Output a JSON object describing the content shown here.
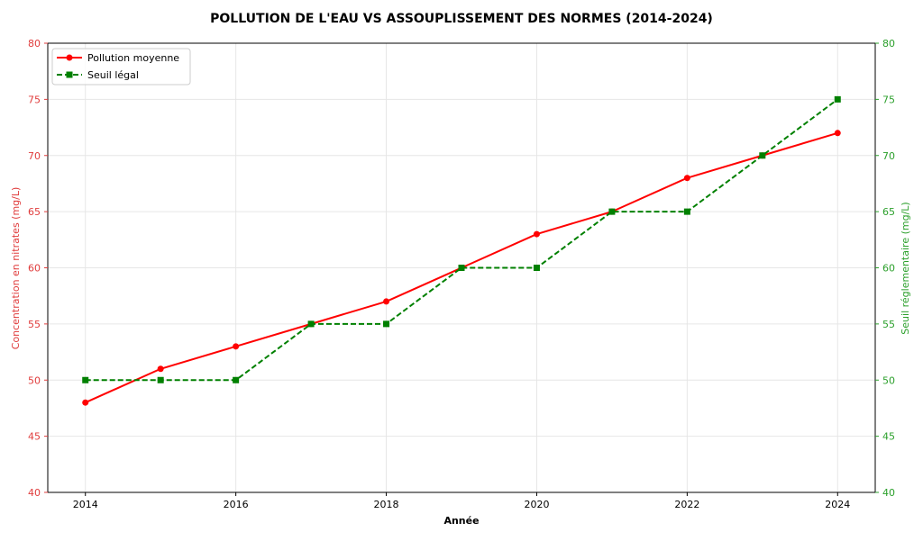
{
  "chart_data": {
    "type": "line",
    "title": "POLLUTION DE L'EAU VS ASSOUPLISSEMENT DES NORMES (2014-2024)",
    "xlabel": "Année",
    "ylabel_left": "Concentration en nitrates (mg/L)",
    "ylabel_right": "Seuil réglementaire (mg/L)",
    "x": [
      2014,
      2015,
      2016,
      2017,
      2018,
      2019,
      2020,
      2021,
      2022,
      2023,
      2024
    ],
    "x_ticks": [
      "2014",
      "2016",
      "2018",
      "2020",
      "2022",
      "2024"
    ],
    "xlim": [
      2013.5,
      2024.5
    ],
    "ylim_left": [
      40,
      80
    ],
    "ylim_right": [
      40,
      80
    ],
    "y_ticks": [
      "40",
      "45",
      "50",
      "55",
      "60",
      "65",
      "70",
      "75",
      "80"
    ],
    "grid": true,
    "legend_position": "top-left",
    "series": [
      {
        "name": "Pollution moyenne",
        "axis": "left",
        "color": "#ff0000",
        "line_style": "solid",
        "marker": "circle",
        "values": [
          48,
          51,
          53,
          55,
          57,
          60,
          63,
          65,
          68,
          70,
          72
        ]
      },
      {
        "name": "Seuil légal",
        "axis": "right",
        "color": "#008000",
        "line_style": "dashed",
        "marker": "square",
        "values": [
          50,
          50,
          50,
          55,
          55,
          60,
          60,
          65,
          65,
          70,
          75
        ]
      }
    ],
    "colors": {
      "left_axis": "#e03c3c",
      "right_axis": "#2ca02c"
    }
  }
}
